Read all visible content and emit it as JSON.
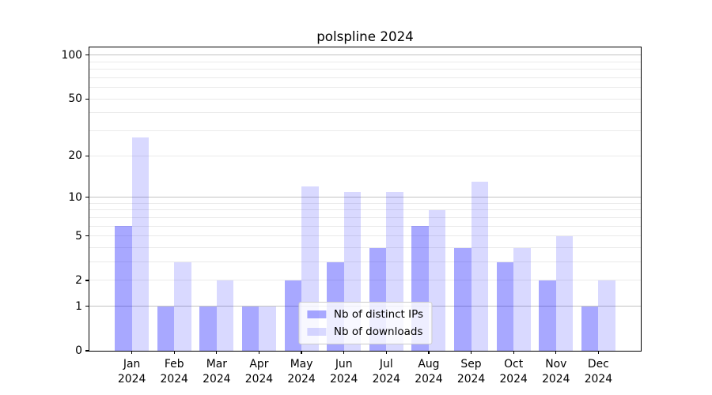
{
  "figure": {
    "title": "polspline 2024"
  },
  "chart_data": {
    "type": "bar",
    "title": "polspline 2024",
    "categories": [
      "Jan",
      "Feb",
      "Mar",
      "Apr",
      "May",
      "Jun",
      "Jul",
      "Aug",
      "Sep",
      "Oct",
      "Nov",
      "Dec"
    ],
    "x_year_suffix": "2024",
    "series": [
      {
        "name": "Nb of distinct IPs",
        "key": "ips",
        "values": [
          6,
          1,
          1,
          1,
          2,
          3,
          4,
          6,
          4,
          3,
          2,
          1
        ]
      },
      {
        "name": "Nb of downloads",
        "key": "downloads",
        "values": [
          27,
          3,
          2,
          1,
          12,
          11,
          11,
          8,
          13,
          4,
          5,
          2
        ]
      }
    ],
    "y_axis": {
      "scale": "log10(1+y)",
      "tick_values": [
        0,
        1,
        2,
        5,
        10,
        20,
        50,
        100
      ],
      "major_gridlines": [
        1,
        10,
        100
      ],
      "minor_gridlines": [
        2,
        3,
        4,
        5,
        6,
        7,
        8,
        9,
        20,
        30,
        40,
        50,
        60,
        70,
        80,
        90
      ],
      "max_log10_1p": 2.0574,
      "ylim": [
        0,
        113
      ]
    },
    "xlabel": "",
    "ylabel": "",
    "grid": true,
    "legend_position": "lower center"
  },
  "legend": {
    "items": [
      {
        "label": "Nb of distinct IPs",
        "series_key": "ips"
      },
      {
        "label": "Nb of downloads",
        "series_key": "downloads"
      }
    ]
  },
  "colors": {
    "background": "#ffffff",
    "axis": "#000000",
    "text": "#000000",
    "bar_ips": "rgba(0,0,255,0.34)",
    "bar_downloads": "rgba(0,0,255,0.15)",
    "major_grid": "#c2c2c2",
    "minor_grid": "#eaeaea",
    "legend_bg": "rgba(255,255,255,0.8)",
    "legend_border": "#cccccc"
  }
}
